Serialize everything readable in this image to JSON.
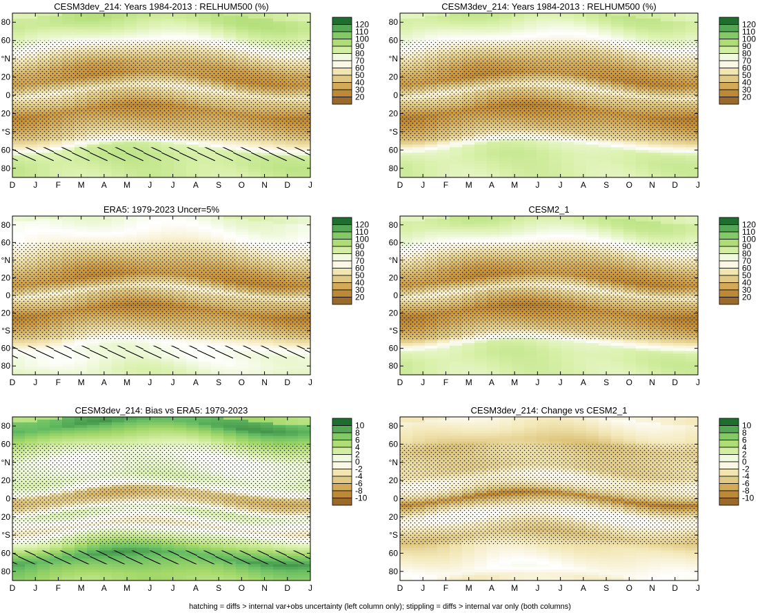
{
  "figure": {
    "footnote": "hatching = diffs > internal var+obs uncertainty (left column only); stippling = diffs > internal var only (both columns)"
  },
  "colors": {
    "brown_dark": "#9a6a2b",
    "brown_mid": "#c9953b",
    "tan": "#dcc37a",
    "pale_tan": "#f3e8b8",
    "white": "#ffffff",
    "pale_green": "#d8f0a8",
    "light_green": "#a6d96a",
    "green": "#66bd63",
    "dark_green": "#1f6e30"
  },
  "chart_data": [
    {
      "id": "p1",
      "type": "heatmap",
      "title": "CESM3dev_214: Years 1984-2013 : RELHUM500 (%)",
      "x_tick_labels": [
        "D",
        "J",
        "F",
        "M",
        "A",
        "M",
        "J",
        "J",
        "A",
        "S",
        "O",
        "N",
        "D",
        "J"
      ],
      "y_tick_labels": [
        "80",
        "60",
        "°N",
        "20",
        "0",
        "20",
        "°S",
        "60",
        "80"
      ],
      "colorbar_levels": [
        "120",
        "110",
        "100",
        "90",
        "80",
        "70",
        "60",
        "50",
        "40",
        "30",
        "20"
      ],
      "colorbar_min": 15,
      "colorbar_max": 125,
      "hatching": true,
      "stippling": true,
      "ylim": [
        -90,
        90
      ],
      "lat_profile": [
        [
          90,
          90
        ],
        [
          80,
          90
        ],
        [
          65,
          80
        ],
        [
          55,
          70
        ],
        [
          45,
          55
        ],
        [
          30,
          35
        ],
        [
          18,
          30
        ],
        [
          8,
          50
        ],
        [
          4,
          62
        ],
        [
          0,
          52
        ],
        [
          -10,
          40
        ],
        [
          -18,
          28
        ],
        [
          -30,
          36
        ],
        [
          -45,
          50
        ],
        [
          -55,
          68
        ],
        [
          -60,
          85
        ],
        [
          -72,
          88
        ],
        [
          -90,
          85
        ]
      ]
    },
    {
      "id": "p2",
      "type": "heatmap",
      "title": "CESM3dev_214: Years 1984-2013 : RELHUM500 (%)",
      "x_tick_labels": [
        "D",
        "J",
        "F",
        "M",
        "A",
        "M",
        "J",
        "J",
        "A",
        "S",
        "O",
        "N",
        "D",
        "J"
      ],
      "y_tick_labels": [
        "80",
        "60",
        "°N",
        "20",
        "0",
        "20",
        "°S",
        "60",
        "80"
      ],
      "colorbar_levels": [
        "120",
        "110",
        "100",
        "90",
        "80",
        "70",
        "60",
        "50",
        "40",
        "30",
        "20"
      ],
      "colorbar_min": 15,
      "colorbar_max": 125,
      "hatching": false,
      "stippling": true,
      "ylim": [
        -90,
        90
      ],
      "lat_profile": [
        [
          90,
          88
        ],
        [
          80,
          85
        ],
        [
          65,
          75
        ],
        [
          55,
          66
        ],
        [
          45,
          52
        ],
        [
          30,
          35
        ],
        [
          18,
          28
        ],
        [
          8,
          50
        ],
        [
          4,
          62
        ],
        [
          0,
          50
        ],
        [
          -10,
          38
        ],
        [
          -18,
          26
        ],
        [
          -30,
          34
        ],
        [
          -45,
          48
        ],
        [
          -52,
          66
        ],
        [
          -58,
          82
        ],
        [
          -70,
          85
        ],
        [
          -90,
          83
        ]
      ]
    },
    {
      "id": "p3",
      "type": "heatmap",
      "title": "ERA5: 1979-2023 Uncer=5%",
      "x_tick_labels": [
        "D",
        "J",
        "F",
        "M",
        "A",
        "M",
        "J",
        "J",
        "A",
        "S",
        "O",
        "N",
        "D",
        "J"
      ],
      "y_tick_labels": [
        "80",
        "60",
        "°N",
        "20",
        "0",
        "20",
        "°S",
        "60",
        "80"
      ],
      "colorbar_levels": [
        "120",
        "110",
        "100",
        "90",
        "80",
        "70",
        "60",
        "50",
        "40",
        "30",
        "20"
      ],
      "colorbar_min": 15,
      "colorbar_max": 125,
      "hatching": true,
      "stippling": true,
      "ylim": [
        -90,
        90
      ],
      "lat_profile": [
        [
          90,
          76
        ],
        [
          80,
          74
        ],
        [
          65,
          68
        ],
        [
          55,
          60
        ],
        [
          45,
          50
        ],
        [
          30,
          35
        ],
        [
          18,
          28
        ],
        [
          8,
          48
        ],
        [
          4,
          62
        ],
        [
          0,
          50
        ],
        [
          -10,
          38
        ],
        [
          -18,
          26
        ],
        [
          -30,
          36
        ],
        [
          -45,
          52
        ],
        [
          -55,
          68
        ],
        [
          -62,
          74
        ],
        [
          -75,
          74
        ],
        [
          -90,
          80
        ]
      ]
    },
    {
      "id": "p4",
      "type": "heatmap",
      "title": "CESM2_1",
      "x_tick_labels": [
        "D",
        "J",
        "F",
        "M",
        "A",
        "M",
        "J",
        "J",
        "A",
        "S",
        "O",
        "N",
        "D",
        "J"
      ],
      "y_tick_labels": [
        "80",
        "60",
        "°N",
        "20",
        "0",
        "20",
        "°S",
        "60",
        "80"
      ],
      "colorbar_levels": [
        "120",
        "110",
        "100",
        "90",
        "80",
        "70",
        "60",
        "50",
        "40",
        "30",
        "20"
      ],
      "colorbar_min": 15,
      "colorbar_max": 125,
      "hatching": false,
      "stippling": true,
      "ylim": [
        -90,
        90
      ],
      "lat_profile": [
        [
          90,
          88
        ],
        [
          80,
          86
        ],
        [
          65,
          76
        ],
        [
          55,
          66
        ],
        [
          45,
          52
        ],
        [
          30,
          35
        ],
        [
          18,
          28
        ],
        [
          8,
          50
        ],
        [
          4,
          62
        ],
        [
          0,
          50
        ],
        [
          -10,
          36
        ],
        [
          -18,
          25
        ],
        [
          -30,
          33
        ],
        [
          -45,
          48
        ],
        [
          -52,
          66
        ],
        [
          -58,
          82
        ],
        [
          -70,
          85
        ],
        [
          -90,
          83
        ]
      ]
    },
    {
      "id": "p5",
      "type": "heatmap",
      "title": "CESM3dev_214: Bias vs ERA5: 1979-2023",
      "x_tick_labels": [
        "D",
        "J",
        "F",
        "M",
        "A",
        "M",
        "J",
        "J",
        "A",
        "S",
        "O",
        "N",
        "D",
        "J"
      ],
      "y_tick_labels": [
        "80",
        "60",
        "°N",
        "20",
        "0",
        "20",
        "°S",
        "60",
        "80"
      ],
      "colorbar_levels": [
        "10",
        "8",
        "6",
        "4",
        "2",
        "0",
        "-2",
        "-4",
        "-6",
        "-8",
        "-10"
      ],
      "colorbar_min": -11,
      "colorbar_max": 11,
      "hatching": true,
      "stippling": true,
      "ylim": [
        -90,
        90
      ],
      "lat_profile": [
        [
          90,
          8
        ],
        [
          80,
          9
        ],
        [
          70,
          6
        ],
        [
          58,
          3
        ],
        [
          45,
          0.5
        ],
        [
          30,
          1
        ],
        [
          20,
          2
        ],
        [
          10,
          0
        ],
        [
          6,
          -5
        ],
        [
          0,
          -6
        ],
        [
          -6,
          -4
        ],
        [
          -15,
          2
        ],
        [
          -22,
          1
        ],
        [
          -32,
          -2
        ],
        [
          -40,
          1
        ],
        [
          -50,
          4
        ],
        [
          -58,
          7
        ],
        [
          -65,
          9
        ],
        [
          -75,
          7
        ],
        [
          -90,
          5
        ]
      ]
    },
    {
      "id": "p6",
      "type": "heatmap",
      "title": "CESM3dev_214: Change vs CESM2_1",
      "x_tick_labels": [
        "D",
        "J",
        "F",
        "M",
        "A",
        "M",
        "J",
        "J",
        "A",
        "S",
        "O",
        "N",
        "D",
        "J"
      ],
      "y_tick_labels": [
        "80",
        "60",
        "°N",
        "20",
        "0",
        "20",
        "°S",
        "60",
        "80"
      ],
      "colorbar_levels": [
        "10",
        "8",
        "6",
        "4",
        "2",
        "0",
        "-2",
        "-4",
        "-6",
        "-8",
        "-10"
      ],
      "colorbar_min": -11,
      "colorbar_max": 11,
      "hatching": false,
      "stippling": true,
      "ylim": [
        -90,
        90
      ],
      "lat_profile": [
        [
          90,
          -1
        ],
        [
          80,
          -2
        ],
        [
          70,
          -3
        ],
        [
          58,
          -5
        ],
        [
          45,
          -4
        ],
        [
          30,
          -4
        ],
        [
          20,
          -1
        ],
        [
          12,
          -2
        ],
        [
          5,
          -5
        ],
        [
          0,
          -9
        ],
        [
          -5,
          -6
        ],
        [
          -15,
          -1
        ],
        [
          -22,
          0
        ],
        [
          -32,
          -3
        ],
        [
          -42,
          -5
        ],
        [
          -52,
          -3
        ],
        [
          -62,
          -2
        ],
        [
          -72,
          -1
        ],
        [
          -82,
          0
        ],
        [
          -90,
          -2
        ]
      ]
    }
  ]
}
